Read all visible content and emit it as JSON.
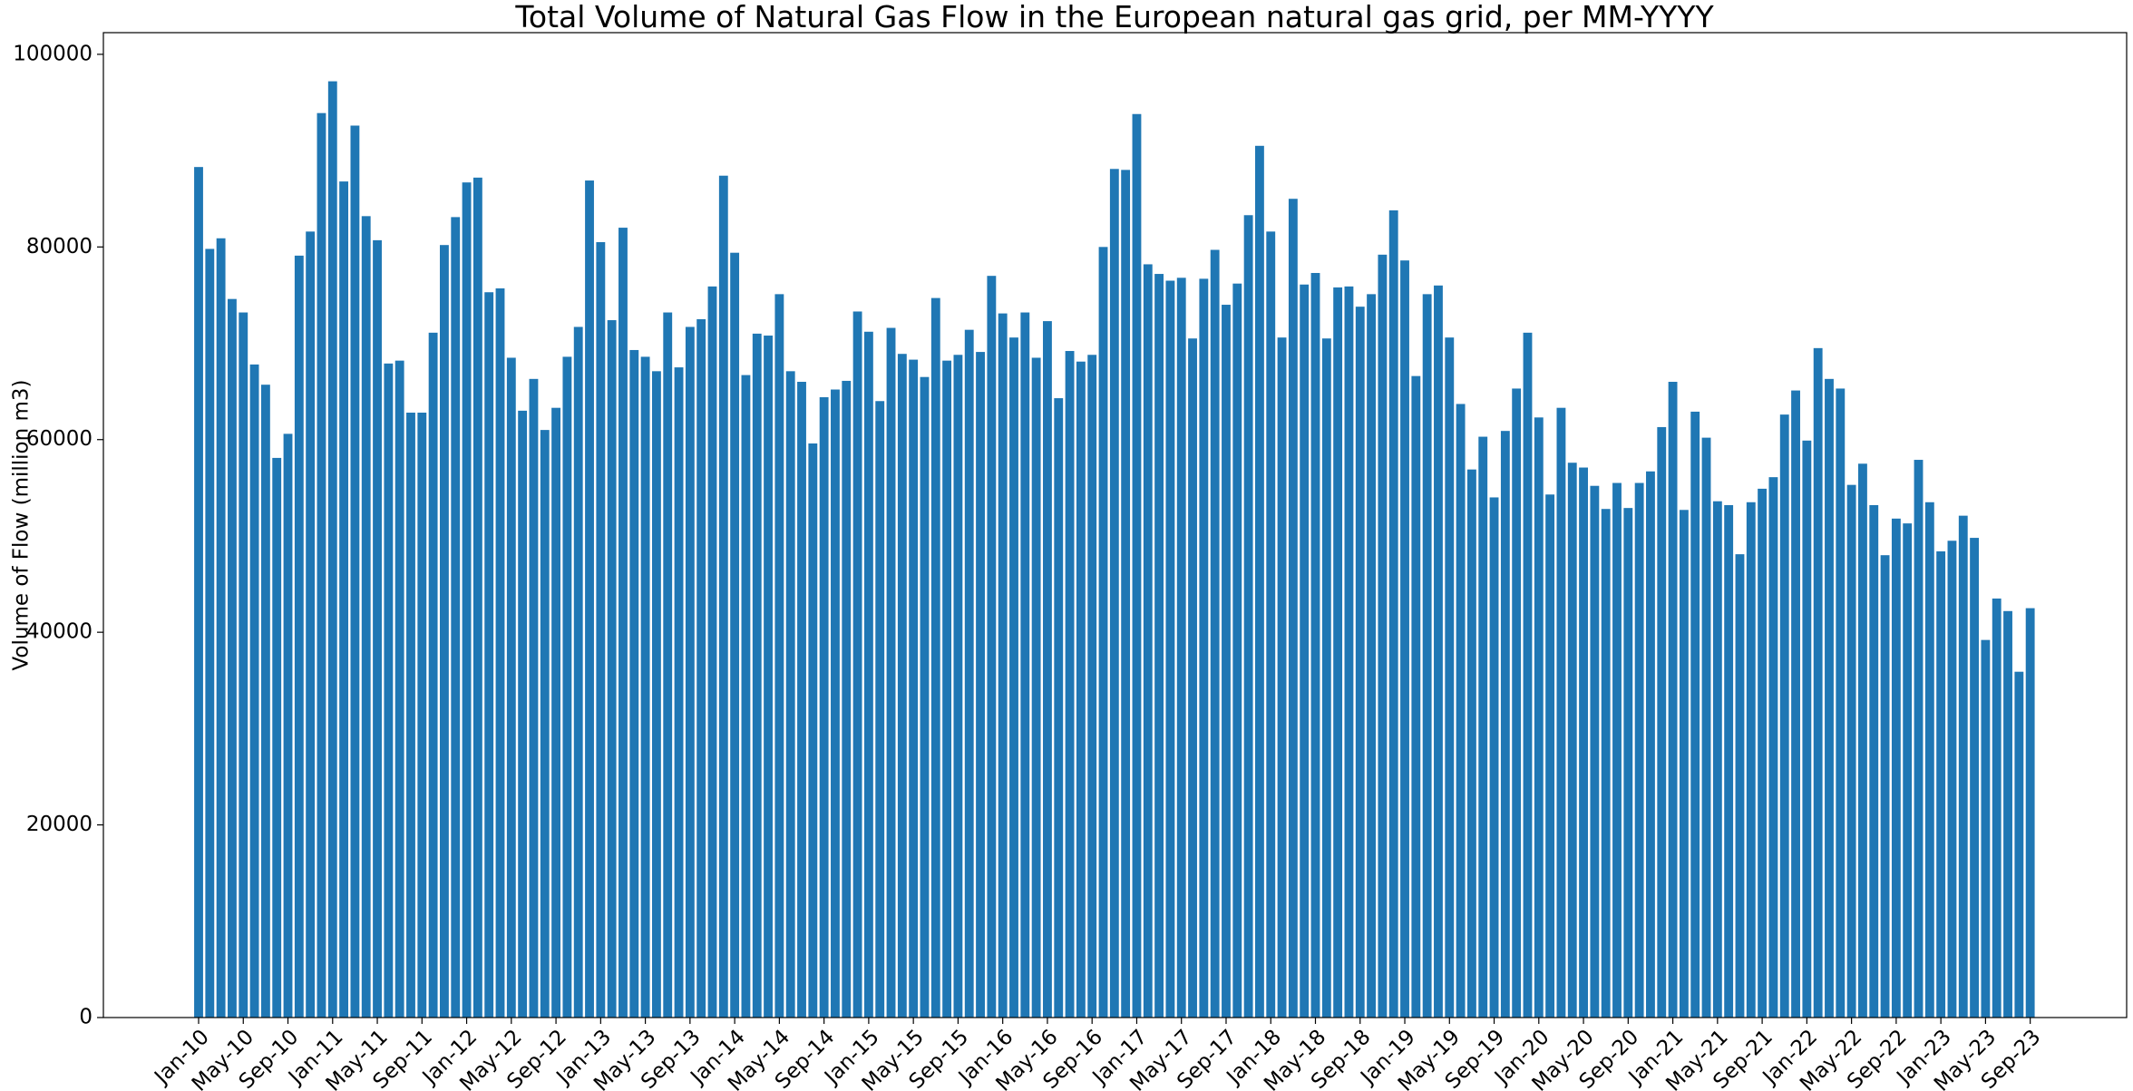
{
  "chart_data": {
    "type": "bar",
    "title": "Total Volume of Natural Gas Flow in the European natural gas grid, per MM-YYYY",
    "y_label": "Volume of Flow (million m3)",
    "color": "#1f77b4",
    "categories": [
      "Jan-10",
      null,
      null,
      null,
      "May-10",
      null,
      null,
      null,
      "Sep-10",
      null,
      null,
      null,
      "Jan-11",
      null,
      null,
      null,
      "May-11",
      null,
      null,
      null,
      "Sep-11",
      null,
      null,
      null,
      "Jan-12",
      null,
      null,
      null,
      "May-12",
      null,
      null,
      null,
      "Sep-12",
      null,
      null,
      null,
      "Jan-13",
      null,
      null,
      null,
      "May-13",
      null,
      null,
      null,
      "Sep-13",
      null,
      null,
      null,
      "Jan-14",
      null,
      null,
      null,
      "May-14",
      null,
      null,
      null,
      "Sep-14",
      null,
      null,
      null,
      "Jan-15",
      null,
      null,
      null,
      "May-15",
      null,
      null,
      null,
      "Sep-15",
      null,
      null,
      null,
      "Jan-16",
      null,
      null,
      null,
      "May-16",
      null,
      null,
      null,
      "Sep-16",
      null,
      null,
      null,
      "Jan-17",
      null,
      null,
      null,
      "May-17",
      null,
      null,
      null,
      "Sep-17",
      null,
      null,
      null,
      "Jan-18",
      null,
      null,
      null,
      "May-18",
      null,
      null,
      null,
      "Sep-18",
      null,
      null,
      null,
      "Jan-19",
      null,
      null,
      null,
      "May-19",
      null,
      null,
      null,
      "Sep-19",
      null,
      null,
      null,
      "Jan-20",
      null,
      null,
      null,
      "May-20",
      null,
      null,
      null,
      "Sep-20",
      null,
      null,
      null,
      "Jan-21",
      null,
      null,
      null,
      "May-21",
      null,
      null,
      null,
      "Sep-21",
      null,
      null,
      null,
      "Jan-22",
      null,
      null,
      null,
      "May-22",
      null,
      null,
      null,
      "Sep-22",
      null,
      null,
      null,
      "Jan-23",
      null,
      null,
      null,
      "May-23",
      null,
      null,
      null,
      "Sep-23"
    ],
    "values": [
      88300,
      79800,
      80900,
      74600,
      73200,
      67800,
      65700,
      58100,
      60600,
      79100,
      81600,
      93900,
      97200,
      86800,
      92600,
      83200,
      80700,
      67900,
      68200,
      62800,
      62800,
      71100,
      80200,
      83100,
      86700,
      87200,
      75300,
      75700,
      68500,
      63000,
      66300,
      61000,
      63300,
      68600,
      71700,
      86900,
      80500,
      72400,
      82000,
      69300,
      68600,
      67100,
      73200,
      67500,
      71700,
      72500,
      75900,
      87400,
      79400,
      66700,
      71000,
      70800,
      75100,
      67100,
      66000,
      59600,
      64400,
      65200,
      66100,
      73300,
      71200,
      64000,
      71600,
      68900,
      68300,
      66500,
      74700,
      68200,
      68800,
      71400,
      69100,
      77000,
      73100,
      70600,
      73200,
      68500,
      72300,
      64300,
      69200,
      68100,
      68800,
      80000,
      88100,
      88000,
      93800,
      78200,
      77200,
      76500,
      76800,
      70500,
      76700,
      79700,
      74000,
      76200,
      83300,
      90500,
      81600,
      70600,
      85000,
      76100,
      77300,
      70500,
      75800,
      75900,
      73800,
      75100,
      79200,
      83800,
      78600,
      66600,
      75100,
      76000,
      70600,
      63700,
      56900,
      60300,
      54000,
      60900,
      65300,
      71100,
      62300,
      54300,
      63300,
      57600,
      57100,
      55200,
      52800,
      55500,
      52900,
      55500,
      56700,
      61300,
      66000,
      52700,
      62900,
      60200,
      53600,
      53200,
      48100,
      53500,
      54900,
      56100,
      62600,
      65100,
      59900,
      69500,
      66300,
      65300,
      55300,
      57500,
      53200,
      48000,
      51800,
      51300,
      57900,
      53500,
      48400,
      49500,
      52100,
      49800,
      39200,
      43500,
      42200,
      35900,
      42500
    ],
    "ylim": [
      0,
      102250
    ],
    "yticks": [
      0,
      20000,
      40000,
      60000,
      80000,
      100000
    ]
  }
}
